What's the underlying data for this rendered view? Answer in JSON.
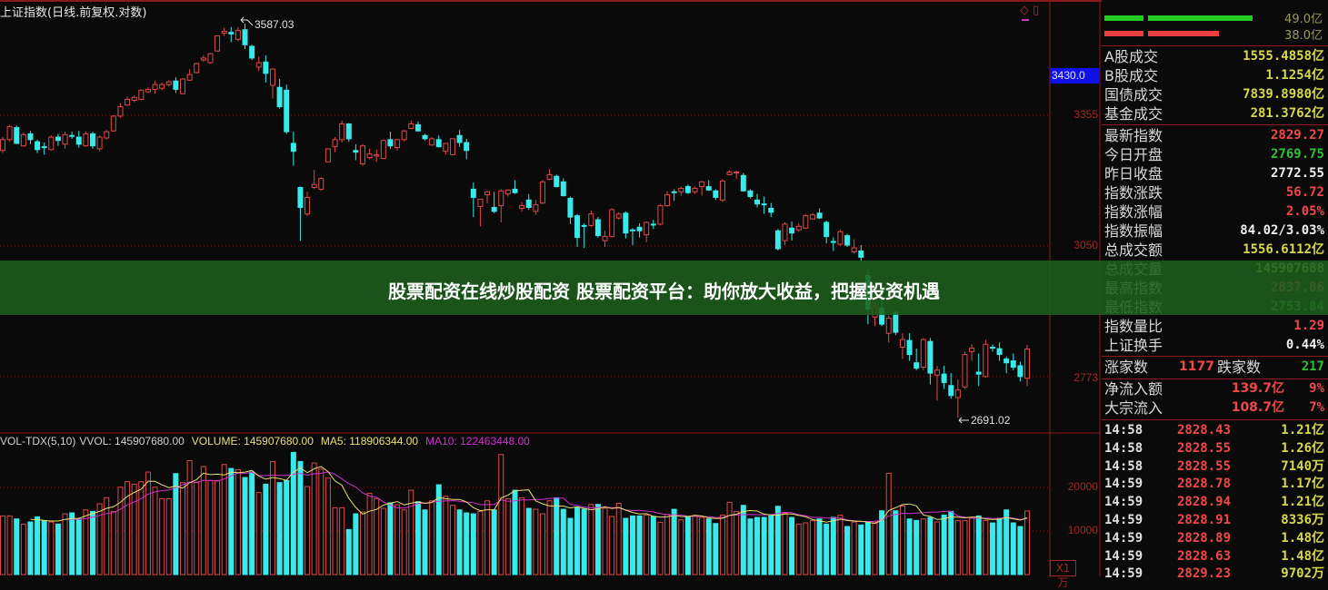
{
  "title": "上证指数(日线.前复权.对数)",
  "banner": "股票配资在线炒股配资 股票配资平台：助你放大收益，把握投资机遇",
  "price_axis": {
    "labels": [
      "3355",
      "3050",
      "2773"
    ],
    "current_label": "3430.0"
  },
  "annotations": {
    "high": "3587.03",
    "low": "2691.02"
  },
  "volume_header": {
    "name": "VOL-TDX(5,10)",
    "vvol": "VVOL: 145907680.00",
    "volume": "VOLUME: 145907680.00",
    "ma5": "MA5: 118906344.00",
    "ma10": "MA10: 122463448.00"
  },
  "volume_axis": {
    "labels": [
      "20000",
      "10000"
    ],
    "unit": "X1万"
  },
  "colors": {
    "up": "#e04848",
    "down": "#38eaea",
    "ma5": "#e8e070",
    "ma10": "#d030d0",
    "banner": "#1e5f1c",
    "grid": "#7a1818"
  },
  "side": {
    "flow_bars": [
      {
        "value": "49.0亿",
        "amount": 49.0,
        "color": "#22cc22"
      },
      {
        "value": "38.0亿",
        "amount": 38.0,
        "color": "#ee4040"
      }
    ],
    "turnover": [
      {
        "label": "A股成交",
        "value": "1555.4858亿"
      },
      {
        "label": "B股成交",
        "value": "1.1254亿"
      },
      {
        "label": "国债成交",
        "value": "7839.8980亿"
      },
      {
        "label": "基金成交",
        "value": "281.3762亿"
      }
    ],
    "index_stats": [
      {
        "label": "最新指数",
        "value": "2829.27",
        "color": "#f04848"
      },
      {
        "label": "今日开盘",
        "value": "2769.75",
        "color": "#30c030"
      },
      {
        "label": "昨日收盘",
        "value": "2772.55",
        "color": "#f0f0f0"
      },
      {
        "label": "指数涨跌",
        "value": "56.72",
        "color": "#f04848"
      },
      {
        "label": "指数涨幅",
        "value": "2.05%",
        "color": "#f04848"
      },
      {
        "label": "指数振幅",
        "value": "84.02/3.03%",
        "color": "#f0f0f0"
      },
      {
        "label": "总成交额",
        "value": "1556.6112亿",
        "color": "#d8d84a"
      },
      {
        "label": "总成交量",
        "value": "145907688",
        "color": "#d8d84a"
      },
      {
        "label": "最高指数",
        "value": "2837.86",
        "color": "#f04848"
      },
      {
        "label": "最低指数",
        "value": "2753.84",
        "color": "#30c030"
      },
      {
        "label": "指数量比",
        "value": "1.29",
        "color": "#f04848"
      },
      {
        "label": "上证换手",
        "value": "0.44%",
        "color": "#f0f0f0"
      }
    ],
    "breadth": {
      "up_label": "涨家数",
      "up": "1177",
      "down_label": "跌家数",
      "down": "217"
    },
    "flows": [
      {
        "label": "净流入额",
        "value": "139.7亿",
        "pct": "9%"
      },
      {
        "label": "大宗流入",
        "value": "108.7亿",
        "pct": "7%"
      }
    ],
    "ticks": [
      {
        "time": "14:58",
        "price": "2828.43",
        "vol": "1.21亿"
      },
      {
        "time": "14:58",
        "price": "2828.55",
        "vol": "1.26亿"
      },
      {
        "time": "14:58",
        "price": "2828.55",
        "vol": "7140万"
      },
      {
        "time": "14:59",
        "price": "2828.78",
        "vol": "1.17亿"
      },
      {
        "time": "14:59",
        "price": "2828.94",
        "vol": "1.21亿"
      },
      {
        "time": "14:59",
        "price": "2828.91",
        "vol": "8336万"
      },
      {
        "time": "14:59",
        "price": "2828.89",
        "vol": "1.48亿"
      },
      {
        "time": "14:59",
        "price": "2828.63",
        "vol": "1.48亿"
      },
      {
        "time": "14:59",
        "price": "2829.23",
        "vol": "9702万"
      }
    ]
  },
  "chart_data": {
    "type": "candlestick",
    "title": "上证指数(日线.前复权.对数)",
    "price_scale": "log",
    "ylim": [
      2680,
      3600
    ],
    "ohlc_fields": [
      "open",
      "high",
      "low",
      "close"
    ],
    "ohlc": [
      [
        3270,
        3302,
        3264,
        3296
      ],
      [
        3296,
        3332,
        3291,
        3327
      ],
      [
        3325,
        3330,
        3285,
        3287
      ],
      [
        3281,
        3313,
        3279,
        3308
      ],
      [
        3310,
        3317,
        3285,
        3296
      ],
      [
        3291,
        3296,
        3264,
        3272
      ],
      [
        3279,
        3289,
        3260,
        3277
      ],
      [
        3272,
        3306,
        3270,
        3302
      ],
      [
        3302,
        3310,
        3281,
        3294
      ],
      [
        3285,
        3315,
        3274,
        3308
      ],
      [
        3306,
        3315,
        3298,
        3304
      ],
      [
        3302,
        3317,
        3277,
        3285
      ],
      [
        3281,
        3315,
        3279,
        3310
      ],
      [
        3310,
        3315,
        3274,
        3281
      ],
      [
        3274,
        3306,
        3268,
        3302
      ],
      [
        3300,
        3319,
        3296,
        3315
      ],
      [
        3317,
        3355,
        3315,
        3353
      ],
      [
        3353,
        3385,
        3349,
        3376
      ],
      [
        3380,
        3401,
        3378,
        3394
      ],
      [
        3392,
        3403,
        3387,
        3399
      ],
      [
        3394,
        3419,
        3392,
        3417
      ],
      [
        3413,
        3424,
        3410,
        3419
      ],
      [
        3419,
        3440,
        3408,
        3431
      ],
      [
        3422,
        3436,
        3417,
        3431
      ],
      [
        3431,
        3442,
        3426,
        3438
      ],
      [
        3440,
        3449,
        3410,
        3419
      ],
      [
        3408,
        3447,
        3408,
        3445
      ],
      [
        3442,
        3470,
        3440,
        3456
      ],
      [
        3461,
        3486,
        3459,
        3484
      ],
      [
        3493,
        3505,
        3488,
        3498
      ],
      [
        3486,
        3511,
        3484,
        3509
      ],
      [
        3516,
        3555,
        3514,
        3555
      ],
      [
        3562,
        3576,
        3555,
        3567
      ],
      [
        3564,
        3578,
        3539,
        3560
      ],
      [
        3546,
        3578,
        3541,
        3569
      ],
      [
        3571,
        3587.03,
        3521,
        3532
      ],
      [
        3528,
        3532,
        3493,
        3498
      ],
      [
        3475,
        3502,
        3465,
        3486
      ],
      [
        3488,
        3505,
        3436,
        3459
      ],
      [
        3429,
        3472,
        3396,
        3470
      ],
      [
        3424,
        3445,
        3371,
        3376
      ],
      [
        3417,
        3431,
        3310,
        3315
      ],
      [
        3287,
        3315,
        3234,
        3268
      ],
      [
        3183,
        3185,
        3062,
        3137
      ],
      [
        3122,
        3173,
        3118,
        3160
      ],
      [
        3183,
        3224,
        3179,
        3190
      ],
      [
        3179,
        3207,
        3175,
        3204
      ],
      [
        3243,
        3274,
        3243,
        3274
      ],
      [
        3279,
        3302,
        3266,
        3296
      ],
      [
        3296,
        3342,
        3289,
        3334
      ],
      [
        3334,
        3336,
        3291,
        3298
      ],
      [
        3270,
        3285,
        3247,
        3266
      ],
      [
        3238,
        3285,
        3234,
        3281
      ],
      [
        3253,
        3274,
        3249,
        3262
      ],
      [
        3257,
        3272,
        3243,
        3260
      ],
      [
        3251,
        3296,
        3251,
        3294
      ],
      [
        3296,
        3315,
        3274,
        3281
      ],
      [
        3277,
        3298,
        3270,
        3296
      ],
      [
        3296,
        3319,
        3291,
        3317
      ],
      [
        3323,
        3342,
        3321,
        3334
      ],
      [
        3332,
        3340,
        3315,
        3317
      ],
      [
        3306,
        3310,
        3294,
        3298
      ],
      [
        3283,
        3302,
        3281,
        3298
      ],
      [
        3296,
        3306,
        3277,
        3279
      ],
      [
        3268,
        3287,
        3260,
        3287
      ],
      [
        3260,
        3298,
        3260,
        3298
      ],
      [
        3306,
        3319,
        3279,
        3289
      ],
      [
        3289,
        3298,
        3249,
        3270
      ],
      [
        3179,
        3194,
        3115,
        3160
      ],
      [
        3139,
        3156,
        3094,
        3156
      ],
      [
        3166,
        3175,
        3147,
        3173
      ],
      [
        3137,
        3173,
        3124,
        3128
      ],
      [
        3141,
        3179,
        3103,
        3175
      ],
      [
        3168,
        3179,
        3162,
        3177
      ],
      [
        3179,
        3200,
        3168,
        3171
      ],
      [
        3135,
        3149,
        3128,
        3141
      ],
      [
        3154,
        3168,
        3132,
        3137
      ],
      [
        3128,
        3154,
        3120,
        3143
      ],
      [
        3147,
        3200,
        3145,
        3196
      ],
      [
        3202,
        3226,
        3200,
        3213
      ],
      [
        3209,
        3213,
        3183,
        3185
      ],
      [
        3196,
        3204,
        3162,
        3164
      ],
      [
        3158,
        3162,
        3099,
        3115
      ],
      [
        3118,
        3122,
        3048,
        3069
      ],
      [
        3096,
        3101,
        3046,
        3094
      ],
      [
        3096,
        3130,
        3092,
        3122
      ],
      [
        3109,
        3115,
        3069,
        3073
      ],
      [
        3062,
        3084,
        3048,
        3071
      ],
      [
        3071,
        3135,
        3069,
        3132
      ],
      [
        3113,
        3126,
        3109,
        3122
      ],
      [
        3124,
        3128,
        3067,
        3079
      ],
      [
        3086,
        3090,
        3052,
        3084
      ],
      [
        3092,
        3101,
        3069,
        3084
      ],
      [
        3075,
        3105,
        3058,
        3103
      ],
      [
        3099,
        3109,
        3088,
        3098
      ],
      [
        3099,
        3145,
        3096,
        3141
      ],
      [
        3141,
        3175,
        3139,
        3166
      ],
      [
        3173,
        3179,
        3152,
        3171
      ],
      [
        3173,
        3185,
        3164,
        3181
      ],
      [
        3185,
        3190,
        3168,
        3171
      ],
      [
        3173,
        3185,
        3168,
        3181
      ],
      [
        3185,
        3198,
        3164,
        3196
      ],
      [
        3185,
        3200,
        3175,
        3177
      ],
      [
        3175,
        3179,
        3154,
        3160
      ],
      [
        3154,
        3202,
        3149,
        3198
      ],
      [
        3213,
        3224,
        3211,
        3219
      ],
      [
        3217,
        3222,
        3202,
        3219
      ],
      [
        3211,
        3217,
        3173,
        3175
      ],
      [
        3175,
        3179,
        3158,
        3162
      ],
      [
        3154,
        3168,
        3137,
        3145
      ],
      [
        3145,
        3162,
        3122,
        3143
      ],
      [
        3135,
        3147,
        3115,
        3126
      ],
      [
        3084,
        3088,
        3040,
        3044
      ],
      [
        3062,
        3103,
        3052,
        3099
      ],
      [
        3090,
        3105,
        3062,
        3079
      ],
      [
        3086,
        3101,
        3082,
        3094
      ],
      [
        3090,
        3122,
        3088,
        3118
      ],
      [
        3111,
        3124,
        3109,
        3120
      ],
      [
        3124,
        3135,
        3111,
        3113
      ],
      [
        3103,
        3107,
        3056,
        3071
      ],
      [
        3060,
        3069,
        3039,
        3058
      ],
      [
        3054,
        3086,
        3050,
        3082
      ],
      [
        3073,
        3077,
        3048,
        3052
      ],
      [
        3037,
        3065,
        3033,
        3046
      ],
      [
        3039,
        3052,
        3014,
        3025
      ],
      [
        2985,
        2999,
        2881,
        2913
      ],
      [
        2896,
        2928,
        2877,
        2919
      ],
      [
        2915,
        2938,
        2877,
        2881
      ],
      [
        2862,
        2900,
        2843,
        2894
      ],
      [
        2906,
        2909,
        2858,
        2864
      ],
      [
        2833,
        2862,
        2809,
        2849
      ],
      [
        2847,
        2862,
        2805,
        2818
      ],
      [
        2801,
        2830,
        2786,
        2790
      ],
      [
        2792,
        2852,
        2786,
        2849
      ],
      [
        2845,
        2852,
        2757,
        2780
      ],
      [
        2776,
        2795,
        2725,
        2786
      ],
      [
        2778,
        2795,
        2748,
        2761
      ],
      [
        2755,
        2780,
        2729,
        2735
      ],
      [
        2731,
        2767,
        2691.02,
        2746
      ],
      [
        2752,
        2824,
        2748,
        2818
      ],
      [
        2824,
        2839,
        2805,
        2831
      ],
      [
        2782,
        2820,
        2754,
        2778
      ],
      [
        2773,
        2849,
        2771,
        2839
      ],
      [
        2833,
        2839,
        2824,
        2831
      ],
      [
        2830,
        2843,
        2805,
        2818
      ],
      [
        2809,
        2814,
        2780,
        2801
      ],
      [
        2805,
        2820,
        2786,
        2792
      ],
      [
        2795,
        2803,
        2763,
        2773
      ],
      [
        2769.75,
        2837.86,
        2753.84,
        2829.27
      ]
    ],
    "volume_unit": "万",
    "volume": [
      13460,
      13460,
      12770,
      11590,
      12080,
      13260,
      12420,
      12080,
      11590,
      13950,
      14160,
      12770,
      14850,
      14500,
      16240,
      17630,
      14500,
      20060,
      21310,
      20750,
      21310,
      23530,
      20060,
      17420,
      17420,
      23180,
      21100,
      26160,
      21100,
      24780,
      21580,
      21580,
      25260,
      24360,
      24080,
      22280,
      23530,
      18810,
      20750,
      25960,
      21100,
      21580,
      28040,
      25960,
      20200,
      25610,
      24220,
      22140,
      15340,
      15340,
      10340,
      13950,
      14360,
      18670,
      17420,
      15200,
      16450,
      16030,
      14850,
      19360,
      16730,
      14850,
      16930,
      20610,
      17970,
      15890,
      14850,
      14160,
      13950,
      14500,
      16930,
      14850,
      27550,
      17420,
      19360,
      17630,
      15200,
      14990,
      13950,
      16930,
      17630,
      14990,
      12910,
      15410,
      14990,
      16100,
      16100,
      15200,
      13330,
      16380,
      12910,
      13460,
      13460,
      13670,
      13330,
      12010,
      13810,
      14990,
      12560,
      13330,
      13330,
      13120,
      12770,
      11730,
      13670,
      16590,
      14500,
      15890,
      12770,
      13120,
      13120,
      13460,
      15680,
      14080,
      13120,
      11590,
      11870,
      12420,
      12770,
      11590,
      13120,
      13600,
      11030,
      12080,
      11380,
      12080,
      12080,
      14640,
      23250,
      14640,
      15750,
      12770,
      12420,
      12770,
      13120,
      12080,
      13670,
      14500,
      12420,
      12420,
      12980,
      13460,
      12420,
      11870,
      12910,
      14850,
      11870,
      11030,
      14591
    ],
    "volume_ylim": [
      0,
      30000
    ],
    "volume_ticks": [
      20000,
      10000
    ],
    "price_ticks": [
      3355,
      3050,
      2773
    ],
    "grid": true
  }
}
